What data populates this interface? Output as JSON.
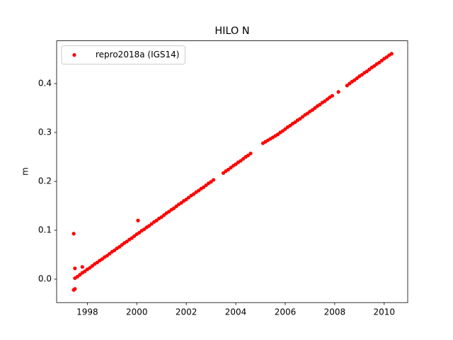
{
  "chart_data": {
    "type": "scatter",
    "title": "HILO N",
    "ylabel": "m",
    "xlim": [
      1996.76,
      2010.95
    ],
    "ylim": [
      -0.048,
      0.4875
    ],
    "xticks": [
      1998,
      2000,
      2002,
      2004,
      2006,
      2008,
      2010
    ],
    "yticks": [
      {
        "value": 0,
        "label": "0.0"
      },
      0.1,
      0.2,
      0.3,
      0.4
    ],
    "legend": "upper left",
    "series": [
      {
        "name": "repro2018a (IGS14)",
        "color": "#ff0000",
        "x": [
          1997.45,
          1997.45,
          1997.5,
          1997.5,
          1997.8,
          2000.05,
          1997.5,
          1997.6,
          1997.7,
          1997.8,
          1997.9,
          1998.0,
          1998.1,
          1998.2,
          1998.3,
          1998.4,
          1998.5,
          1998.6,
          1998.7,
          1998.8,
          1998.9,
          1999.0,
          1999.1,
          1999.2,
          1999.3,
          1999.4,
          1999.5,
          1999.6,
          1999.7,
          1999.8,
          1999.9,
          2000.0,
          2000.1,
          2000.2,
          2000.3,
          2000.4,
          2000.5,
          2000.6,
          2000.7,
          2000.8,
          2000.9,
          2001.0,
          2001.1,
          2001.2,
          2001.3,
          2001.4,
          2001.5,
          2001.6,
          2001.7,
          2001.8,
          2001.9,
          2002.0,
          2002.1,
          2002.2,
          2002.3,
          2002.4,
          2002.5,
          2002.6,
          2002.7,
          2002.8,
          2002.9,
          2003.0,
          2003.1,
          2003.5,
          2003.6,
          2003.7,
          2003.8,
          2003.9,
          2004.0,
          2004.1,
          2004.2,
          2004.3,
          2004.4,
          2004.5,
          2004.6,
          2005.1,
          2005.2,
          2005.3,
          2005.4,
          2005.5,
          2005.6,
          2005.7,
          2005.8,
          2005.9,
          2006.0,
          2006.1,
          2006.2,
          2006.3,
          2006.4,
          2006.5,
          2006.6,
          2006.7,
          2006.8,
          2006.9,
          2007.0,
          2007.1,
          2007.2,
          2007.3,
          2007.4,
          2007.5,
          2007.6,
          2007.7,
          2007.8,
          2007.9,
          2008.15,
          2008.5,
          2008.6,
          2008.7,
          2008.8,
          2008.9,
          2009.0,
          2009.1,
          2009.2,
          2009.3,
          2009.4,
          2009.5,
          2009.6,
          2009.7,
          2009.8,
          2009.9,
          2010.0,
          2010.1,
          2010.2,
          2010.3
        ],
        "values": [
          0.093,
          -0.022,
          -0.02,
          0.022,
          0.025,
          0.12,
          0.002,
          0.005,
          0.009,
          0.013,
          0.016,
          0.02,
          0.023,
          0.027,
          0.031,
          0.034,
          0.038,
          0.041,
          0.045,
          0.048,
          0.052,
          0.056,
          0.059,
          0.063,
          0.066,
          0.07,
          0.074,
          0.077,
          0.081,
          0.084,
          0.088,
          0.092,
          0.095,
          0.099,
          0.102,
          0.106,
          0.109,
          0.113,
          0.117,
          0.12,
          0.124,
          0.127,
          0.131,
          0.135,
          0.138,
          0.142,
          0.145,
          0.149,
          0.153,
          0.156,
          0.16,
          0.163,
          0.167,
          0.171,
          0.174,
          0.178,
          0.181,
          0.185,
          0.188,
          0.192,
          0.196,
          0.199,
          0.203,
          0.217,
          0.221,
          0.224,
          0.228,
          0.232,
          0.235,
          0.239,
          0.242,
          0.246,
          0.25,
          0.253,
          0.257,
          0.278,
          0.281,
          0.284,
          0.287,
          0.29,
          0.293,
          0.296,
          0.3,
          0.303,
          0.307,
          0.311,
          0.314,
          0.318,
          0.321,
          0.325,
          0.328,
          0.332,
          0.336,
          0.339,
          0.343,
          0.346,
          0.35,
          0.354,
          0.357,
          0.361,
          0.364,
          0.368,
          0.372,
          0.375,
          0.383,
          0.396,
          0.4,
          0.404,
          0.407,
          0.411,
          0.415,
          0.418,
          0.422,
          0.425,
          0.429,
          0.433,
          0.436,
          0.44,
          0.443,
          0.447,
          0.451,
          0.454,
          0.458,
          0.461
        ]
      }
    ]
  }
}
